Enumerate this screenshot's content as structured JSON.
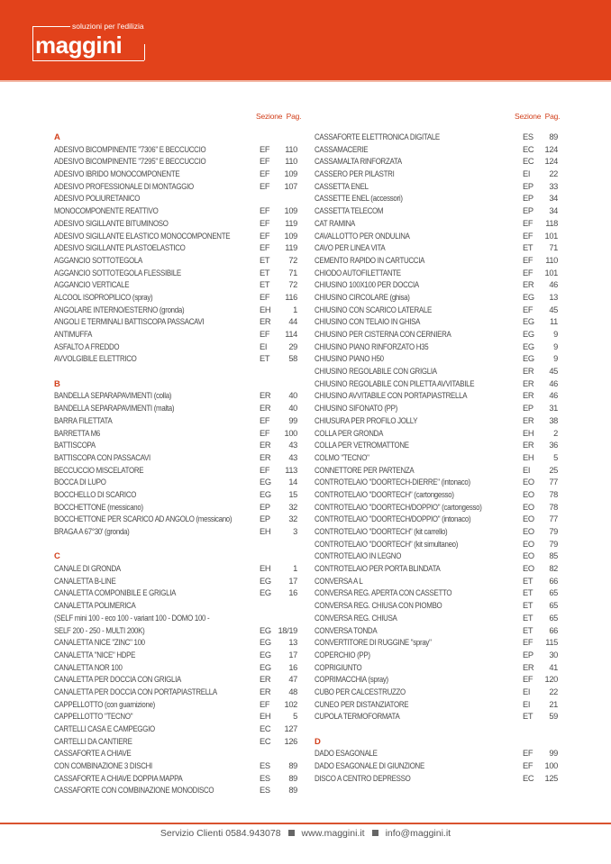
{
  "brand": {
    "name": "maggini",
    "tagline": "soluzioni per l'edilizia",
    "color": "#e2421b"
  },
  "headers": {
    "sezione": "Sezione",
    "pag": "Pag."
  },
  "left": [
    {
      "letter": "A"
    },
    {
      "t": "ADESIVO BICOMPINENTE \"7306\" E BECCUCCIO",
      "s": "EF",
      "p": "110"
    },
    {
      "t": "ADESIVO BICOMPINENTE \"7295\" E BECCUCCIO",
      "s": "EF",
      "p": "110"
    },
    {
      "t": "ADESIVO IBRIDO MONOCOMPONENTE",
      "s": "EF",
      "p": "109"
    },
    {
      "t": "ADESIVO PROFESSIONALE DI MONTAGGIO",
      "s": "EF",
      "p": "107"
    },
    {
      "t": "ADESIVO POLIURETANICO",
      "s": "",
      "p": ""
    },
    {
      "t": "MONOCOMPONENTE REATTIVO",
      "s": "EF",
      "p": "109"
    },
    {
      "t": "ADESIVO SIGILLANTE BITUMINOSO",
      "s": "EF",
      "p": "119"
    },
    {
      "t": "ADESIVO SIGILLANTE ELASTICO MONOCOMPONENTE",
      "s": "EF",
      "p": "109"
    },
    {
      "t": "ADESIVO SIGILLANTE PLASTOELASTICO",
      "s": "EF",
      "p": "119"
    },
    {
      "t": "AGGANCIO SOTTOTEGOLA",
      "s": "ET",
      "p": "72"
    },
    {
      "t": "AGGANCIO SOTTOTEGOLA FLESSIBILE",
      "s": "ET",
      "p": "71"
    },
    {
      "t": "AGGANCIO VERTICALE",
      "s": "ET",
      "p": "72"
    },
    {
      "t": "ALCOOL ISOPROPILICO (spray)",
      "s": "EF",
      "p": "116"
    },
    {
      "t": "ANGOLARE INTERNO/ESTERNO (gronda)",
      "s": "EH",
      "p": "1"
    },
    {
      "t": "ANGOLI E TERMINALI BATTISCOPA PASSACAVI",
      "s": "ER",
      "p": "44"
    },
    {
      "t": "ANTIMUFFA",
      "s": "EF",
      "p": "114"
    },
    {
      "t": "ASFALTO A FREDDO",
      "s": "EI",
      "p": "29"
    },
    {
      "t": "AVVOLGIBILE ELETTRICO",
      "s": "ET",
      "p": "58"
    },
    {
      "letter": "B"
    },
    {
      "t": "BANDELLA SEPARAPAVIMENTI (colla)",
      "s": "ER",
      "p": "40"
    },
    {
      "t": "BANDELLA SEPARAPAVIMENTI (malta)",
      "s": "ER",
      "p": "40"
    },
    {
      "t": "BARRA FILETTATA",
      "s": "EF",
      "p": "99"
    },
    {
      "t": "BARRETTA M6",
      "s": "EF",
      "p": "100"
    },
    {
      "t": "BATTISCOPA",
      "s": "ER",
      "p": "43"
    },
    {
      "t": "BATTISCOPA CON PASSACAVI",
      "s": "ER",
      "p": "43"
    },
    {
      "t": "BECCUCCIO MISCELATORE",
      "s": "EF",
      "p": "113"
    },
    {
      "t": "BOCCA DI LUPO",
      "s": "EG",
      "p": "14"
    },
    {
      "t": "BOCCHELLO DI SCARICO",
      "s": "EG",
      "p": "15"
    },
    {
      "t": "BOCCHETTONE (messicano)",
      "s": "EP",
      "p": "32"
    },
    {
      "t": "BOCCHETTONE PER SCARICO AD ANGOLO (messicano)",
      "s": "EP",
      "p": "32"
    },
    {
      "t": "BRAGA A 67°30' (gronda)",
      "s": "EH",
      "p": "3"
    },
    {
      "letter": "C"
    },
    {
      "t": "CANALE DI GRONDA",
      "s": "EH",
      "p": "1"
    },
    {
      "t": "CANALETTA B-LINE",
      "s": "EG",
      "p": "17"
    },
    {
      "t": "CANALETTA COMPONIBILE E GRIGLIA",
      "s": "EG",
      "p": "16"
    },
    {
      "t": "CANALETTA POLIMERICA",
      "s": "",
      "p": ""
    },
    {
      "t": "(SELF mini 100 - eco 100 - variant 100 - DOMO 100 -",
      "s": "",
      "p": ""
    },
    {
      "t": "SELF 200 - 250 - MULTI 200K)",
      "s": "EG",
      "p": "18/19"
    },
    {
      "t": "CANALETTA NICE \"ZINC\" 100",
      "s": "EG",
      "p": "13"
    },
    {
      "t": "CANALETTA \"NICE\" HDPE",
      "s": "EG",
      "p": "17"
    },
    {
      "t": "CANALETTA NOR 100",
      "s": "EG",
      "p": "16"
    },
    {
      "t": "CANALETTA PER DOCCIA CON GRIGLIA",
      "s": "ER",
      "p": "47"
    },
    {
      "t": "CANALETTA PER DOCCIA CON PORTAPIASTRELLA",
      "s": "ER",
      "p": "48"
    },
    {
      "t": "CAPPELLOTTO (con guarnizione)",
      "s": "EF",
      "p": "102"
    },
    {
      "t": "CAPPELLOTTO \"TECNO\"",
      "s": "EH",
      "p": "5"
    },
    {
      "t": "CARTELLI CASA E CAMPEGGIO",
      "s": "EC",
      "p": "127"
    },
    {
      "t": "CARTELLI DA CANTIERE",
      "s": "EC",
      "p": "126"
    },
    {
      "t": "CASSAFORTE A CHIAVE",
      "s": "",
      "p": ""
    },
    {
      "t": "CON COMBINAZIONE 3 DISCHI",
      "s": "ES",
      "p": "89"
    },
    {
      "t": "CASSAFORTE A CHIAVE DOPPIA MAPPA",
      "s": "ES",
      "p": "89"
    },
    {
      "t": "CASSAFORTE CON COMBINAZIONE MONODISCO",
      "s": "ES",
      "p": "89"
    }
  ],
  "right": [
    {
      "t": "CASSAFORTE ELETTRONICA DIGITALE",
      "s": "ES",
      "p": "89"
    },
    {
      "t": "CASSAMACERIE",
      "s": "EC",
      "p": "124"
    },
    {
      "t": "CASSAMALTA RINFORZATA",
      "s": "EC",
      "p": "124"
    },
    {
      "t": "CASSERO PER PILASTRI",
      "s": "EI",
      "p": "22"
    },
    {
      "t": "CASSETTA ENEL",
      "s": "EP",
      "p": "33"
    },
    {
      "t": "CASSETTE ENEL (accessori)",
      "s": "EP",
      "p": "34"
    },
    {
      "t": "CASSETTA TELECOM",
      "s": "EP",
      "p": "34"
    },
    {
      "t": "CAT RAMINA",
      "s": "EF",
      "p": "118"
    },
    {
      "t": "CAVALLOTTO PER ONDULINA",
      "s": "EF",
      "p": "101"
    },
    {
      "t": "CAVO PER LINEA VITA",
      "s": "ET",
      "p": "71"
    },
    {
      "t": "CEMENTO RAPIDO IN CARTUCCIA",
      "s": "EF",
      "p": "110"
    },
    {
      "t": "CHIODO AUTOFILETTANTE",
      "s": "EF",
      "p": "101"
    },
    {
      "t": "CHIUSINO 100X100 PER DOCCIA",
      "s": "ER",
      "p": "46"
    },
    {
      "t": "CHIUSINO CIRCOLARE (ghisa)",
      "s": "EG",
      "p": "13"
    },
    {
      "t": "CHIUSINO CON SCARICO LATERALE",
      "s": "EF",
      "p": "45"
    },
    {
      "t": "CHIUSINO CON TELAIO IN GHISA",
      "s": "EG",
      "p": "11"
    },
    {
      "t": "CHIUSINO PER CISTERNA CON CERNIERA",
      "s": "EG",
      "p": "9"
    },
    {
      "t": "CHIUSINO PIANO RINFORZATO H35",
      "s": "EG",
      "p": "9"
    },
    {
      "t": "CHIUSINO PIANO H50",
      "s": "EG",
      "p": "9"
    },
    {
      "t": "CHIUSINO REGOLABILE CON GRIGLIA",
      "s": "ER",
      "p": "45"
    },
    {
      "t": "CHIUSINO REGOLABILE CON PILETTA AVVITABILE",
      "s": "ER",
      "p": "46"
    },
    {
      "t": "CHIUSINO AVVITABILE CON PORTAPIASTRELLA",
      "s": "ER",
      "p": "46"
    },
    {
      "t": "CHIUSINO SIFONATO (PP)",
      "s": "EP",
      "p": "31"
    },
    {
      "t": "CHIUSURA PER PROFILO JOLLY",
      "s": "ER",
      "p": "38"
    },
    {
      "t": "COLLA PER GRONDA",
      "s": "EH",
      "p": "2"
    },
    {
      "t": "COLLA PER VETROMATTONE",
      "s": "ER",
      "p": "36"
    },
    {
      "t": "COLMO \"TECNO\"",
      "s": "EH",
      "p": "5"
    },
    {
      "t": "CONNETTORE PER PARTENZA",
      "s": "EI",
      "p": "25"
    },
    {
      "t": "CONTROTELAIO \"DOORTECH-DIERRE\" (intonaco)",
      "s": "EO",
      "p": "77"
    },
    {
      "t": "CONTROTELAIO \"DOORTECH\" (cartongesso)",
      "s": "EO",
      "p": "78"
    },
    {
      "t": "CONTROTELAIO \"DOORTECH/DOPPIO\" (cartongesso)",
      "s": "EO",
      "p": "78"
    },
    {
      "t": "CONTROTELAIO \"DOORTECH/DOPPIO\" (intonaco)",
      "s": "EO",
      "p": "77"
    },
    {
      "t": "CONTROTELAIO \"DOORTECH\" (kit carrello)",
      "s": "EO",
      "p": "79"
    },
    {
      "t": "CONTROTELAIO \"DOORTECH\" (kit simultaneo)",
      "s": "EO",
      "p": "79"
    },
    {
      "t": "CONTROTELAIO IN LEGNO",
      "s": "EO",
      "p": "85"
    },
    {
      "t": "CONTROTELAIO PER PORTA BLINDATA",
      "s": "EO",
      "p": "82"
    },
    {
      "t": "CONVERSA A L",
      "s": "ET",
      "p": "66"
    },
    {
      "t": "CONVERSA REG. APERTA CON CASSETTO",
      "s": "ET",
      "p": "65"
    },
    {
      "t": "CONVERSA REG. CHIUSA CON PIOMBO",
      "s": "ET",
      "p": "65"
    },
    {
      "t": "CONVERSA REG. CHIUSA",
      "s": "ET",
      "p": "65"
    },
    {
      "t": "CONVERSA TONDA",
      "s": "ET",
      "p": "66"
    },
    {
      "t": "CONVERTITORE DI RUGGINE \"spray\"",
      "s": "EF",
      "p": "115"
    },
    {
      "t": "COPERCHIO (PP)",
      "s": "EP",
      "p": "30"
    },
    {
      "t": "COPRIGIUNTO",
      "s": "ER",
      "p": "41"
    },
    {
      "t": "COPRIMACCHIA (spray)",
      "s": "EF",
      "p": "120"
    },
    {
      "t": "CUBO PER CALCESTRUZZO",
      "s": "EI",
      "p": "22"
    },
    {
      "t": "CUNEO PER DISTANZIATORE",
      "s": "EI",
      "p": "21"
    },
    {
      "t": "CUPOLA TERMOFORMATA",
      "s": "ET",
      "p": "59"
    },
    {
      "letter": "D"
    },
    {
      "t": "DADO ESAGONALE",
      "s": "EF",
      "p": "99"
    },
    {
      "t": "DADO ESAGONALE DI GIUNZIONE",
      "s": "EF",
      "p": "100"
    },
    {
      "t": "DISCO A CENTRO DEPRESSO",
      "s": "EC",
      "p": "125"
    }
  ],
  "footer": {
    "phone": "Servizio Clienti 0584.943078",
    "web": "www.maggini.it",
    "email": "info@maggini.it"
  }
}
